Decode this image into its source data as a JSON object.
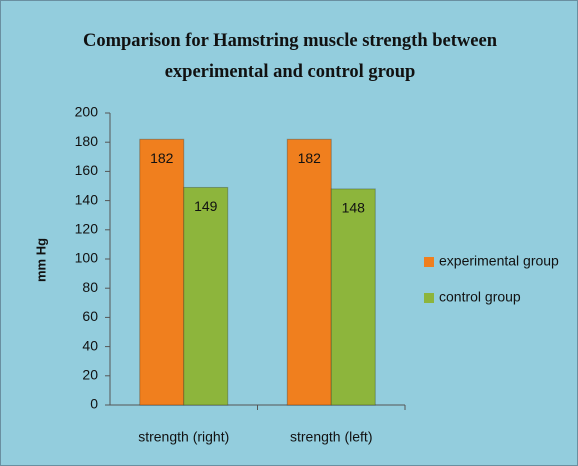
{
  "chart_data": {
    "type": "bar",
    "title": "Comparison for Hamstring muscle strength between experimental and control group",
    "ylabel": "mm Hg",
    "categories": [
      "strength (right)",
      "strength (left)"
    ],
    "series": [
      {
        "name": "experimental group",
        "color": "#f07f1e",
        "values": [
          182,
          182
        ]
      },
      {
        "name": "control group",
        "color": "#8db53c",
        "values": [
          149,
          148
        ]
      }
    ],
    "ylim": [
      0,
      200
    ],
    "yticks": [
      0,
      20,
      40,
      60,
      80,
      100,
      120,
      140,
      160,
      180,
      200
    ],
    "legend": "right",
    "grid": false
  }
}
